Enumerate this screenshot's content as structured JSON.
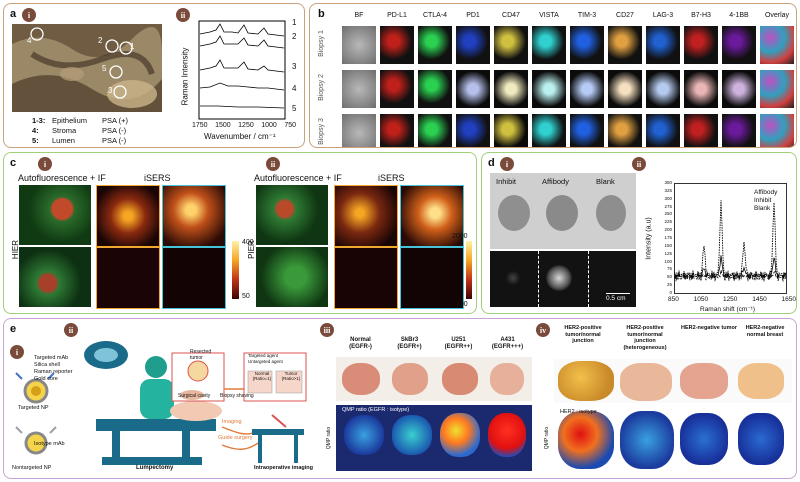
{
  "panel_a": {
    "label": "a",
    "sub_i": "i",
    "sub_ii": "ii",
    "micro_labels": [
      "4",
      "2",
      "1",
      "5",
      "3"
    ],
    "legend": [
      {
        "ids": "1-3:",
        "tissue": "Epithelium",
        "psa": "PSA (+)"
      },
      {
        "ids": "4:",
        "tissue": "Stroma",
        "psa": "PSA (-)"
      },
      {
        "ids": "5:",
        "tissue": "Lumen",
        "psa": "PSA (-)"
      }
    ],
    "ylabel": "Raman Intensity",
    "xlabel": "Wavenumber / cm⁻¹",
    "xticks": [
      "1750",
      "1500",
      "1250",
      "1000",
      "750"
    ],
    "curve_labels": [
      "1",
      "2",
      "3",
      "4",
      "5"
    ]
  },
  "panel_b": {
    "label": "b",
    "columns": [
      "BF",
      "PD-L1",
      "CTLA-4",
      "PD1",
      "CD47",
      "VISTA",
      "TIM-3",
      "CD27",
      "LAG-3",
      "B7-H3",
      "4-1BB",
      "Overlay"
    ],
    "rows": [
      "Biopsy 1",
      "Biopsy 2",
      "Biopsy 3"
    ]
  },
  "panel_c": {
    "label": "c",
    "sub_i": "i",
    "sub_ii": "ii",
    "left_title": "Autofluorescence + IF",
    "left_iser": "iSERS",
    "left_side": "HIER",
    "left_cbar": [
      "400",
      "50"
    ],
    "right_title": "Autofluorescence + IF",
    "right_iser": "iSERS",
    "right_side": "PIER",
    "right_cbar": [
      "2000",
      "100"
    ]
  },
  "panel_d": {
    "label": "d",
    "sub_i": "i",
    "sub_ii": "ii",
    "columns": [
      "Inhibit",
      "Affibody",
      "Blank"
    ],
    "scale": "0.5 cm",
    "legend": [
      "Affibody",
      "Inhibit",
      "Blank"
    ],
    "ylabel": "Intensity (a.u)",
    "xlabel": "Raman shift (cm⁻¹)",
    "yticks": [
      "0",
      "25",
      "50",
      "75",
      "100",
      "125",
      "150",
      "175",
      "200",
      "225",
      "250",
      "275",
      "300",
      "325",
      "350"
    ],
    "xticks": [
      "850",
      "1050",
      "1250",
      "1450",
      "1650"
    ]
  },
  "panel_e": {
    "label": "e",
    "sub_i": "i",
    "sub_ii": "ii",
    "sub_iii": "iii",
    "sub_iv": "iv",
    "np_labels": [
      "Targeted mAb",
      "Silica shell",
      "Raman reporter",
      "Gold core",
      "Targeted NP",
      "Isotype mAb",
      "Nontargeted NP"
    ],
    "surgery_labels": [
      "Resected tumor",
      "Surgical cavity",
      "Biopsy shaving",
      "Imaging",
      "Guide surgery",
      "Lumpectomy",
      "Intraoperative imaging"
    ],
    "agent_legend": [
      "Targeted agent",
      "Untargeted agent"
    ],
    "agent_boxes": [
      {
        "title": "Normal",
        "ratio": "(Ratio=1)"
      },
      {
        "title": "Tumor",
        "ratio": "(Ratio>1)"
      }
    ],
    "iii_cols": [
      {
        "name": "Normal",
        "status": "(EGFR-)"
      },
      {
        "name": "SkBr3",
        "status": "(EGFR+)"
      },
      {
        "name": "U251",
        "status": "(EGFR++)"
      },
      {
        "name": "A431",
        "status": "(EGFR+++)"
      }
    ],
    "iii_ratio": "QMP ratio (EGFR : isotype)",
    "iii_side": "QMP ratio",
    "iv_cols": [
      "HER2-positive tumor/normal junction",
      "HER2-positive tumor/normal junction (heterogeneous)",
      "HER2-negative tumor",
      "HER2-negative normal breast"
    ],
    "iv_ratio": "HER2 : isotype",
    "iv_side": "QMP ratio"
  },
  "colors": {
    "panel_a_border": "#c9a27a",
    "panel_b_border": "#c9a27a",
    "panel_c_border": "#9fd07a",
    "panel_d_border": "#9fd07a",
    "panel_e_border": "#c7a2d6",
    "roman_badge": "#7a4b3a"
  }
}
